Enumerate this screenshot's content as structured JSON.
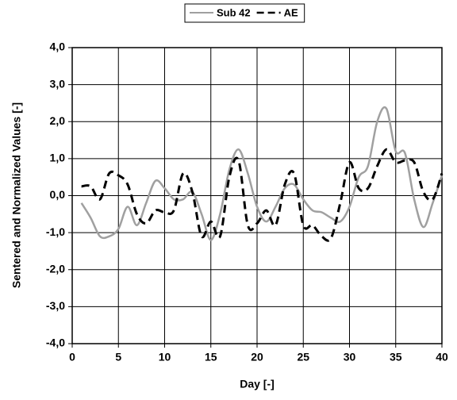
{
  "chart_data": {
    "type": "line",
    "xlabel": "Day [-]",
    "ylabel": "Sentered and Normalized Values [-]",
    "x": [
      1,
      2,
      3,
      4,
      5,
      6,
      7,
      8,
      9,
      10,
      11,
      12,
      13,
      14,
      15,
      16,
      17,
      18,
      19,
      20,
      21,
      22,
      23,
      24,
      25,
      26,
      27,
      28,
      29,
      30,
      31,
      32,
      33,
      34,
      35,
      36,
      37,
      38,
      39,
      40
    ],
    "series": [
      {
        "name": "Sub 42",
        "color": "#a0a0a0",
        "dash": "solid",
        "values": [
          -0.2,
          -0.6,
          -1.1,
          -1.1,
          -0.9,
          -0.3,
          -0.8,
          -0.2,
          0.4,
          0.2,
          -0.1,
          -0.1,
          0.1,
          -0.5,
          -1.2,
          -0.5,
          0.7,
          1.25,
          0.6,
          -0.3,
          -0.7,
          -0.3,
          0.2,
          0.3,
          -0.1,
          -0.4,
          -0.45,
          -0.6,
          -0.7,
          -0.3,
          0.5,
          0.8,
          2.0,
          2.35,
          1.2,
          1.15,
          -0.1,
          -0.85,
          -0.2,
          0.55
        ]
      },
      {
        "name": "AE",
        "color": "#000000",
        "dash": "dashed",
        "values": [
          0.25,
          0.25,
          -0.1,
          0.6,
          0.55,
          0.3,
          -0.5,
          -0.75,
          -0.4,
          -0.45,
          -0.4,
          0.6,
          0.1,
          -1.1,
          -0.7,
          -1.1,
          0.5,
          0.95,
          -0.8,
          -0.75,
          -0.4,
          -0.8,
          0.3,
          0.6,
          -0.8,
          -0.8,
          -1.1,
          -1.15,
          -0.2,
          0.9,
          0.2,
          0.2,
          0.8,
          1.25,
          0.9,
          0.95,
          0.9,
          0.1,
          -0.1,
          0.6
        ]
      }
    ],
    "xlim": [
      0,
      40
    ],
    "xticks": [
      0,
      5,
      10,
      15,
      20,
      25,
      30,
      35,
      40
    ],
    "ylim": [
      -4,
      4
    ],
    "yticks": [
      {
        "value": -4,
        "label": "-4,0"
      },
      {
        "value": -3,
        "label": "-3,0"
      },
      {
        "value": -2,
        "label": "-2,0"
      },
      {
        "value": -1,
        "label": "-1,0"
      },
      {
        "value": 0,
        "label": "0,0"
      },
      {
        "value": 1,
        "label": "1,0"
      },
      {
        "value": 2,
        "label": "2,0"
      },
      {
        "value": 3,
        "label": "3,0"
      },
      {
        "value": 4,
        "label": "4,0"
      }
    ],
    "grid": true,
    "legend": "top"
  }
}
